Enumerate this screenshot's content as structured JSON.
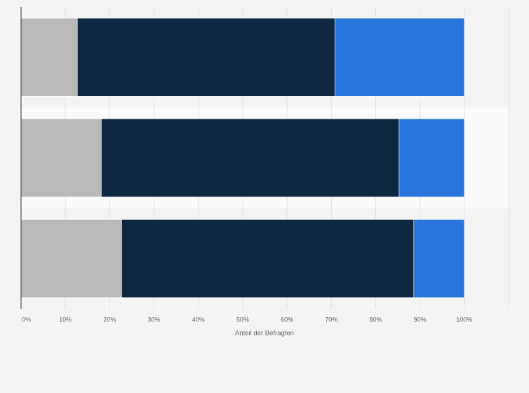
{
  "chart_data": {
    "type": "stacked-barh",
    "categories": [
      null,
      null,
      null
    ],
    "series": [
      {
        "color": "#b9b9b9",
        "values": [
          12.7,
          18.1,
          22.7
        ]
      },
      {
        "color": "#0f2740",
        "values": [
          58.1,
          67.2,
          65.9
        ]
      },
      {
        "color": "#2876dd",
        "values": [
          29.2,
          14.7,
          11.4
        ]
      }
    ],
    "xlabel": "Anteil der Befragten",
    "xlim": [
      0,
      110
    ],
    "xticks": [
      {
        "value": 0,
        "label": "0%"
      },
      {
        "value": 10,
        "label": "10%"
      },
      {
        "value": 20,
        "label": "20%"
      },
      {
        "value": 30,
        "label": "30%"
      },
      {
        "value": 40,
        "label": "40%"
      },
      {
        "value": 50,
        "label": "50%"
      },
      {
        "value": 60,
        "label": "60%"
      },
      {
        "value": 70,
        "label": "70%"
      },
      {
        "value": 80,
        "label": "80%"
      },
      {
        "value": 90,
        "label": "90%"
      },
      {
        "value": 100,
        "label": "100%"
      }
    ],
    "grid": true
  }
}
